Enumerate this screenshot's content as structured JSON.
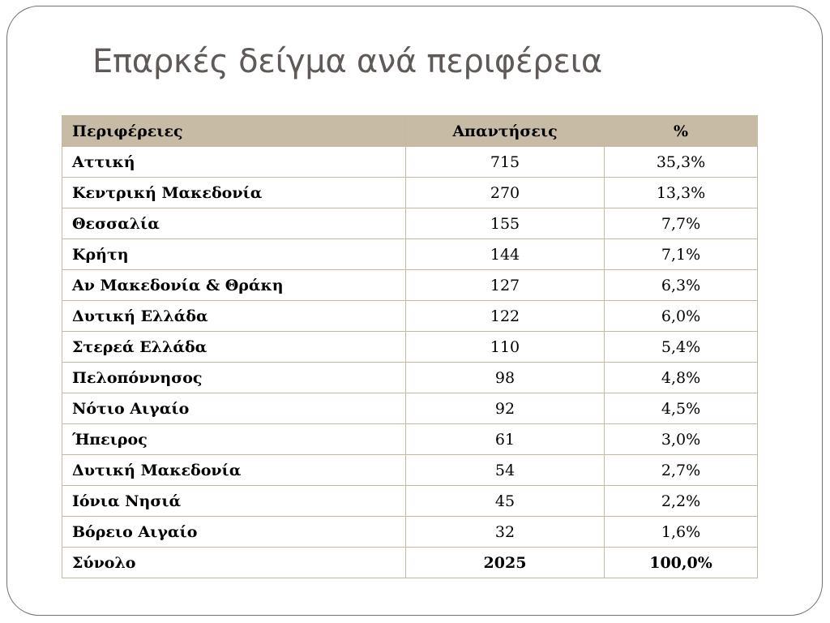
{
  "slide": {
    "title": "Επαρκές δείγμα ανά περιφέρεια"
  },
  "table": {
    "headers": [
      "Περιφέρειες",
      "Απαντήσεις",
      "%"
    ],
    "rows": [
      [
        "Αττική",
        "715",
        "35,3%"
      ],
      [
        "Κεντρική Μακεδονία",
        "270",
        "13,3%"
      ],
      [
        "Θεσσαλία",
        "155",
        "7,7%"
      ],
      [
        "Κρήτη",
        "144",
        "7,1%"
      ],
      [
        "Αν Μακεδονία & Θράκη",
        "127",
        "6,3%"
      ],
      [
        "Δυτική Ελλάδα",
        "122",
        "6,0%"
      ],
      [
        "Στερεά Ελλάδα",
        "110",
        "5,4%"
      ],
      [
        "Πελοπόννησος",
        "98",
        "4,8%"
      ],
      [
        "Νότιο Αιγαίο",
        "92",
        "4,5%"
      ],
      [
        "Ήπειρος",
        "61",
        "3,0%"
      ],
      [
        "Δυτική Μακεδονία",
        "54",
        "2,7%"
      ],
      [
        "Ιόνια Νησιά",
        "45",
        "2,2%"
      ],
      [
        "Βόρειο Αιγαίο",
        "32",
        "1,6%"
      ]
    ],
    "total": [
      "Σύνολο",
      "2025",
      "100,0%"
    ]
  },
  "colors": {
    "header_bg": "#c8bba6",
    "border": "#c6b9a4",
    "title_text": "#5f5a58",
    "frame": "#6f6f6f"
  }
}
